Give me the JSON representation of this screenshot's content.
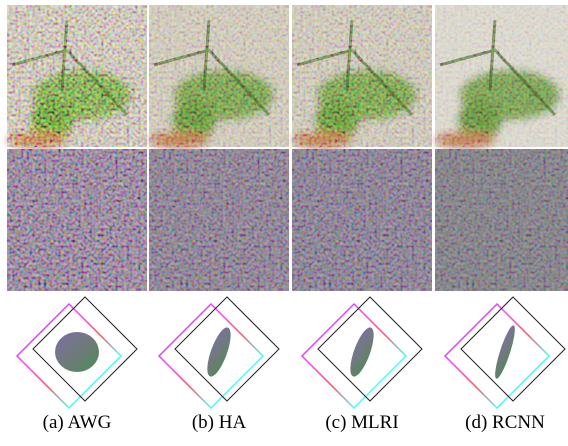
{
  "captions": [
    "(a) AWG",
    "(b) HA",
    "(c) MLRI",
    "(d) RCNN"
  ]
}
